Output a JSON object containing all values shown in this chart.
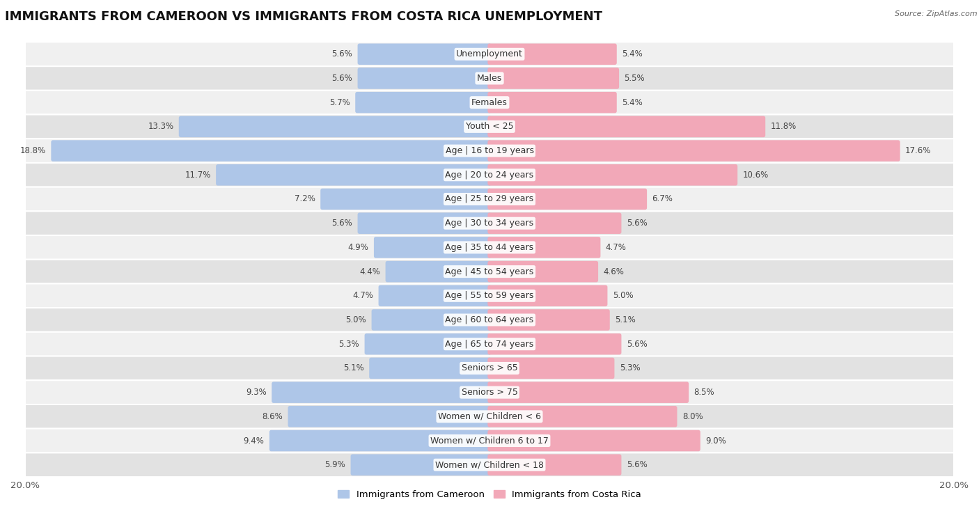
{
  "title": "IMMIGRANTS FROM CAMEROON VS IMMIGRANTS FROM COSTA RICA UNEMPLOYMENT",
  "source": "Source: ZipAtlas.com",
  "categories": [
    "Unemployment",
    "Males",
    "Females",
    "Youth < 25",
    "Age | 16 to 19 years",
    "Age | 20 to 24 years",
    "Age | 25 to 29 years",
    "Age | 30 to 34 years",
    "Age | 35 to 44 years",
    "Age | 45 to 54 years",
    "Age | 55 to 59 years",
    "Age | 60 to 64 years",
    "Age | 65 to 74 years",
    "Seniors > 65",
    "Seniors > 75",
    "Women w/ Children < 6",
    "Women w/ Children 6 to 17",
    "Women w/ Children < 18"
  ],
  "cameroon": [
    5.6,
    5.6,
    5.7,
    13.3,
    18.8,
    11.7,
    7.2,
    5.6,
    4.9,
    4.4,
    4.7,
    5.0,
    5.3,
    5.1,
    9.3,
    8.6,
    9.4,
    5.9
  ],
  "costa_rica": [
    5.4,
    5.5,
    5.4,
    11.8,
    17.6,
    10.6,
    6.7,
    5.6,
    4.7,
    4.6,
    5.0,
    5.1,
    5.6,
    5.3,
    8.5,
    8.0,
    9.0,
    5.6
  ],
  "color_cameroon": "#aec6e8",
  "color_costa_rica": "#f2a8b8",
  "color_row_light": "#f0f0f0",
  "color_row_dark": "#e2e2e2",
  "max_value": 20.0,
  "legend_cameroon": "Immigrants from Cameroon",
  "legend_costa_rica": "Immigrants from Costa Rica",
  "title_fontsize": 13,
  "label_fontsize": 8.5,
  "cat_fontsize": 9
}
